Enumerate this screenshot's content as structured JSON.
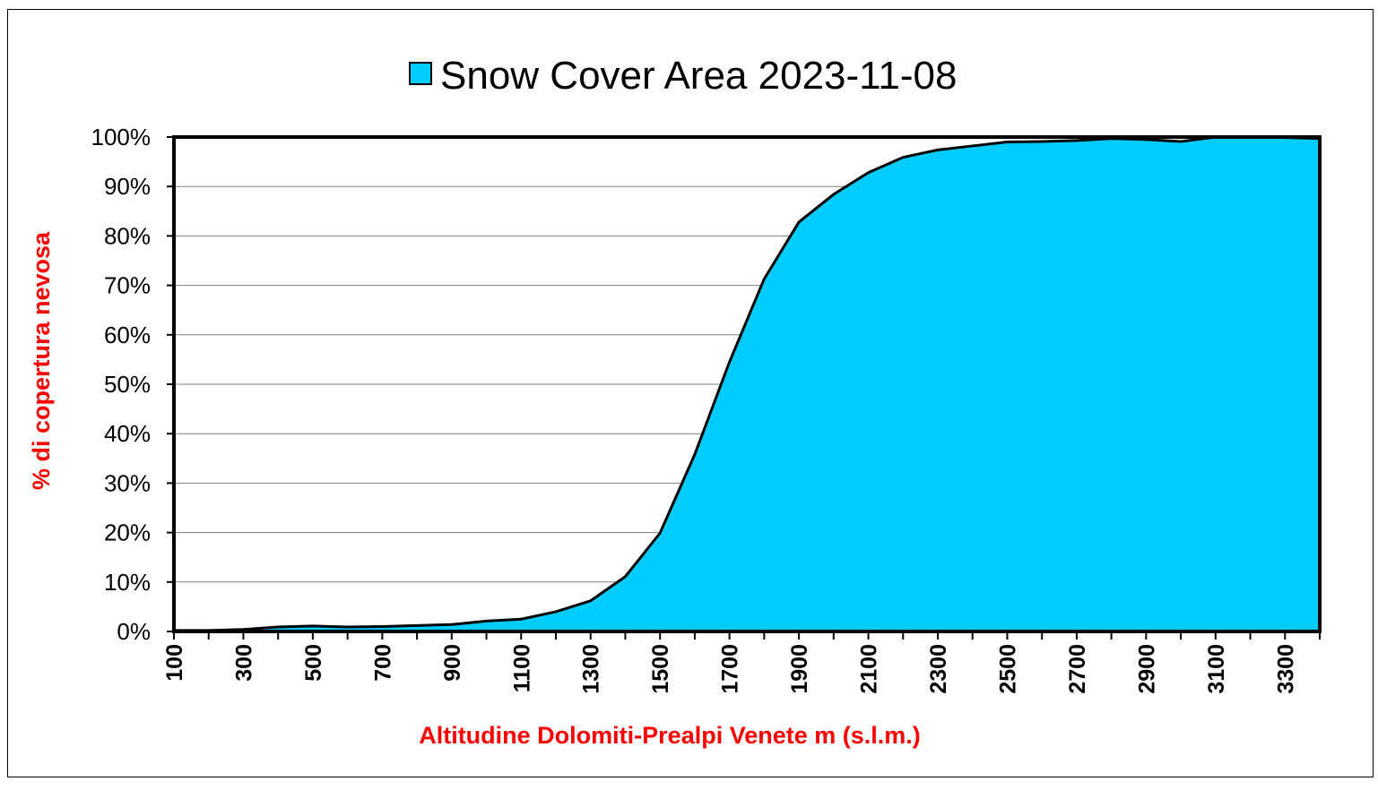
{
  "chart_data": {
    "type": "area",
    "title": "Snow Cover Area 2023-11-08",
    "legend": [
      {
        "label": "Snow Cover Area 2023-11-08",
        "color": "#00CCFF"
      }
    ],
    "legend_placement": "top-center",
    "xlabel": "Altitudine Dolomiti-Prealpi Venete m (s.l.m.)",
    "ylabel": "% di copertura nevosa",
    "x": [
      100,
      200,
      300,
      400,
      500,
      600,
      700,
      800,
      900,
      1000,
      1100,
      1200,
      1300,
      1400,
      1500,
      1600,
      1700,
      1800,
      1900,
      2000,
      2100,
      2200,
      2300,
      2400,
      2500,
      2600,
      2700,
      2800,
      2900,
      3000,
      3100,
      3200,
      3300,
      3400
    ],
    "x_tick_labels": [
      "100",
      "300",
      "500",
      "700",
      "900",
      "1100",
      "1300",
      "1500",
      "1700",
      "1900",
      "2100",
      "2300",
      "2500",
      "2700",
      "2900",
      "3100",
      "3300"
    ],
    "values": [
      0.2,
      0.2,
      0.4,
      0.9,
      1.1,
      0.9,
      1.0,
      1.2,
      1.4,
      2.1,
      2.5,
      4.0,
      6.2,
      11.1,
      19.9,
      35.8,
      54.5,
      71.3,
      82.8,
      88.4,
      92.8,
      95.9,
      97.4,
      98.2,
      99.0,
      99.1,
      99.3,
      99.7,
      99.5,
      99.1,
      100,
      100,
      99.9,
      99.7
    ],
    "ylim": [
      0,
      100
    ],
    "y_tick_labels": [
      "0%",
      "10%",
      "20%",
      "30%",
      "40%",
      "50%",
      "60%",
      "70%",
      "80%",
      "90%",
      "100%"
    ],
    "grid": true,
    "colors": {
      "fill": "#00CCFF",
      "axis_title": "#FF0000",
      "line": "#000000"
    }
  }
}
